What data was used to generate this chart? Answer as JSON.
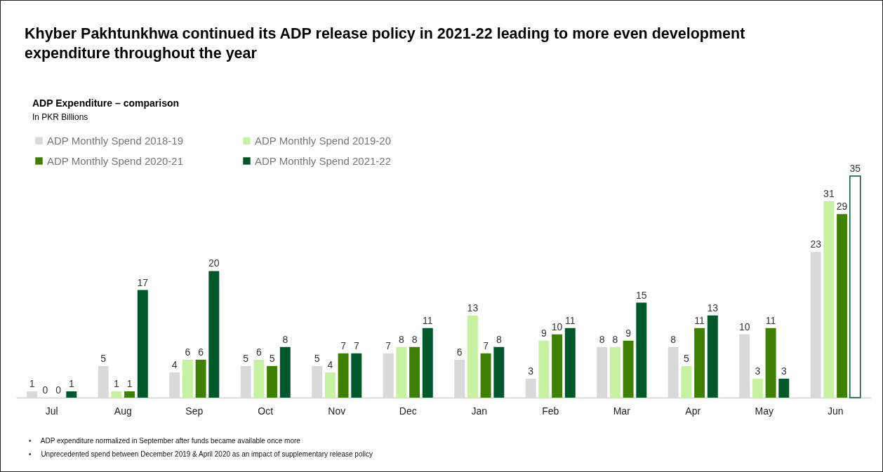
{
  "chart_data": {
    "type": "bar",
    "title": "Khyber Pakhtunkhwa continued its ADP release policy in 2021-22 leading to more even development expenditure throughout the year",
    "subtitle": "ADP Expenditure – comparison",
    "categories": [
      "Jul",
      "Aug",
      "Sep",
      "Oct",
      "Nov",
      "Dec",
      "Jan",
      "Feb",
      "Mar",
      "Apr",
      "May",
      "Jun"
    ],
    "series": [
      {
        "name": "ADP Monthly Spend 2018-19",
        "color": "#d9d9d9",
        "values": [
          1,
          5,
          4,
          5,
          5,
          7,
          6,
          3,
          8,
          8,
          10,
          23
        ]
      },
      {
        "name": "ADP Monthly Spend 2019-20",
        "color": "#c6f1a0",
        "values": [
          0,
          1,
          6,
          6,
          4,
          8,
          13,
          9,
          8,
          5,
          3,
          31
        ]
      },
      {
        "name": "ADP Monthly Spend 2020-21",
        "color": "#3f8000",
        "values": [
          0,
          1,
          6,
          5,
          7,
          8,
          7,
          10,
          9,
          11,
          11,
          29
        ]
      },
      {
        "name": "ADP Monthly Spend 2021-22",
        "color": "#00582b",
        "colors": [
          "#00582b",
          "#00582b",
          "#00582b",
          "#00582b",
          "#00582b",
          "#00582b",
          "#00582b",
          "#00582b",
          "#00582b",
          "#00582b",
          "#00582b",
          "#ffffff"
        ],
        "values": [
          1,
          17,
          20,
          8,
          7,
          11,
          8,
          11,
          15,
          13,
          3,
          35
        ]
      }
    ],
    "data_labels": true,
    "legend": "top left",
    "grid": false,
    "annotations": [
      "In PKR Billions",
      "•     ADP expenditure normalized in September after funds became available once more",
      "•     Unprecedented spend between December 2019 & April 2020 as an impact of supplementary release policy"
    ]
  }
}
